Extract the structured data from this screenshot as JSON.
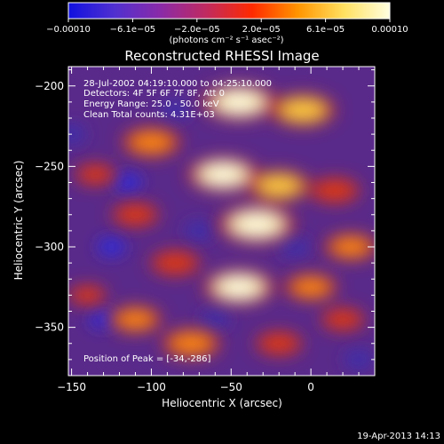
{
  "chart_data": {
    "type": "heatmap",
    "title": "Reconstructed RHESSI Image",
    "xlabel": "Heliocentric X (arcsec)",
    "ylabel": "Heliocentric Y (arcsec)",
    "xlim": [
      -152,
      40
    ],
    "ylim": [
      -380,
      -188
    ],
    "x_ticks": [
      -150,
      -100,
      -50,
      0
    ],
    "x_tick_labels": [
      "−150",
      "−100",
      "−50",
      "0"
    ],
    "y_ticks": [
      -200,
      -250,
      -300,
      -350
    ],
    "y_tick_labels": [
      "−200",
      "−250",
      "−300",
      "−350"
    ],
    "colorbar": {
      "min": -0.0001,
      "max": 0.0001,
      "tick_labels": [
        "−0.00010",
        "−6.1e−05",
        "−2.0e−05",
        "2.0e−05",
        "6.1e−05",
        "0.00010"
      ],
      "unit_label": "(photons cm⁻² s⁻¹ asec⁻²)",
      "colors": [
        "#1010e0",
        "#5030d0",
        "#8a2aa8",
        "#c02a60",
        "#ff2a00",
        "#ff9500",
        "#ffe060",
        "#ffffe0"
      ]
    },
    "annotations": [
      "28-Jul-2002 04:19:10.000 to 04:25:10.000",
      "Detectors: 4F 5F 6F 7F 8F, Att 0",
      "Energy Range: 25.0 - 50.0 keV",
      "Clean    Total counts: 4.31E+03"
    ],
    "peak_label": "Position of Peak = [-34,-286]",
    "peak_position": [
      -34,
      -286
    ],
    "footer_timestamp": "19-Apr-2013 14:13",
    "sources": [
      {
        "x": -45,
        "y": -210,
        "intensity": 0.95
      },
      {
        "x": -5,
        "y": -215,
        "intensity": 0.8
      },
      {
        "x": -100,
        "y": -235,
        "intensity": 0.7
      },
      {
        "x": -55,
        "y": -255,
        "intensity": 0.9
      },
      {
        "x": -20,
        "y": -262,
        "intensity": 0.75
      },
      {
        "x": 15,
        "y": -265,
        "intensity": 0.55
      },
      {
        "x": -34,
        "y": -286,
        "intensity": 1.0
      },
      {
        "x": -110,
        "y": -280,
        "intensity": 0.5
      },
      {
        "x": -135,
        "y": -255,
        "intensity": 0.4
      },
      {
        "x": 25,
        "y": -300,
        "intensity": 0.6
      },
      {
        "x": -85,
        "y": -310,
        "intensity": 0.55
      },
      {
        "x": -45,
        "y": -325,
        "intensity": 0.9
      },
      {
        "x": 0,
        "y": -325,
        "intensity": 0.6
      },
      {
        "x": -110,
        "y": -345,
        "intensity": 0.6
      },
      {
        "x": -75,
        "y": -360,
        "intensity": 0.7
      },
      {
        "x": -20,
        "y": -360,
        "intensity": 0.5
      },
      {
        "x": 20,
        "y": -345,
        "intensity": 0.45
      },
      {
        "x": -140,
        "y": -330,
        "intensity": 0.35
      }
    ],
    "negative_regions": [
      {
        "x": -115,
        "y": -260,
        "intensity": -0.6
      },
      {
        "x": -125,
        "y": -300,
        "intensity": -0.55
      },
      {
        "x": -70,
        "y": -290,
        "intensity": -0.45
      },
      {
        "x": -130,
        "y": -345,
        "intensity": -0.6
      },
      {
        "x": -60,
        "y": -345,
        "intensity": -0.5
      },
      {
        "x": -10,
        "y": -300,
        "intensity": -0.4
      },
      {
        "x": -150,
        "y": -230,
        "intensity": -0.4
      },
      {
        "x": -85,
        "y": -215,
        "intensity": -0.35
      },
      {
        "x": 30,
        "y": -370,
        "intensity": -0.35
      }
    ]
  }
}
